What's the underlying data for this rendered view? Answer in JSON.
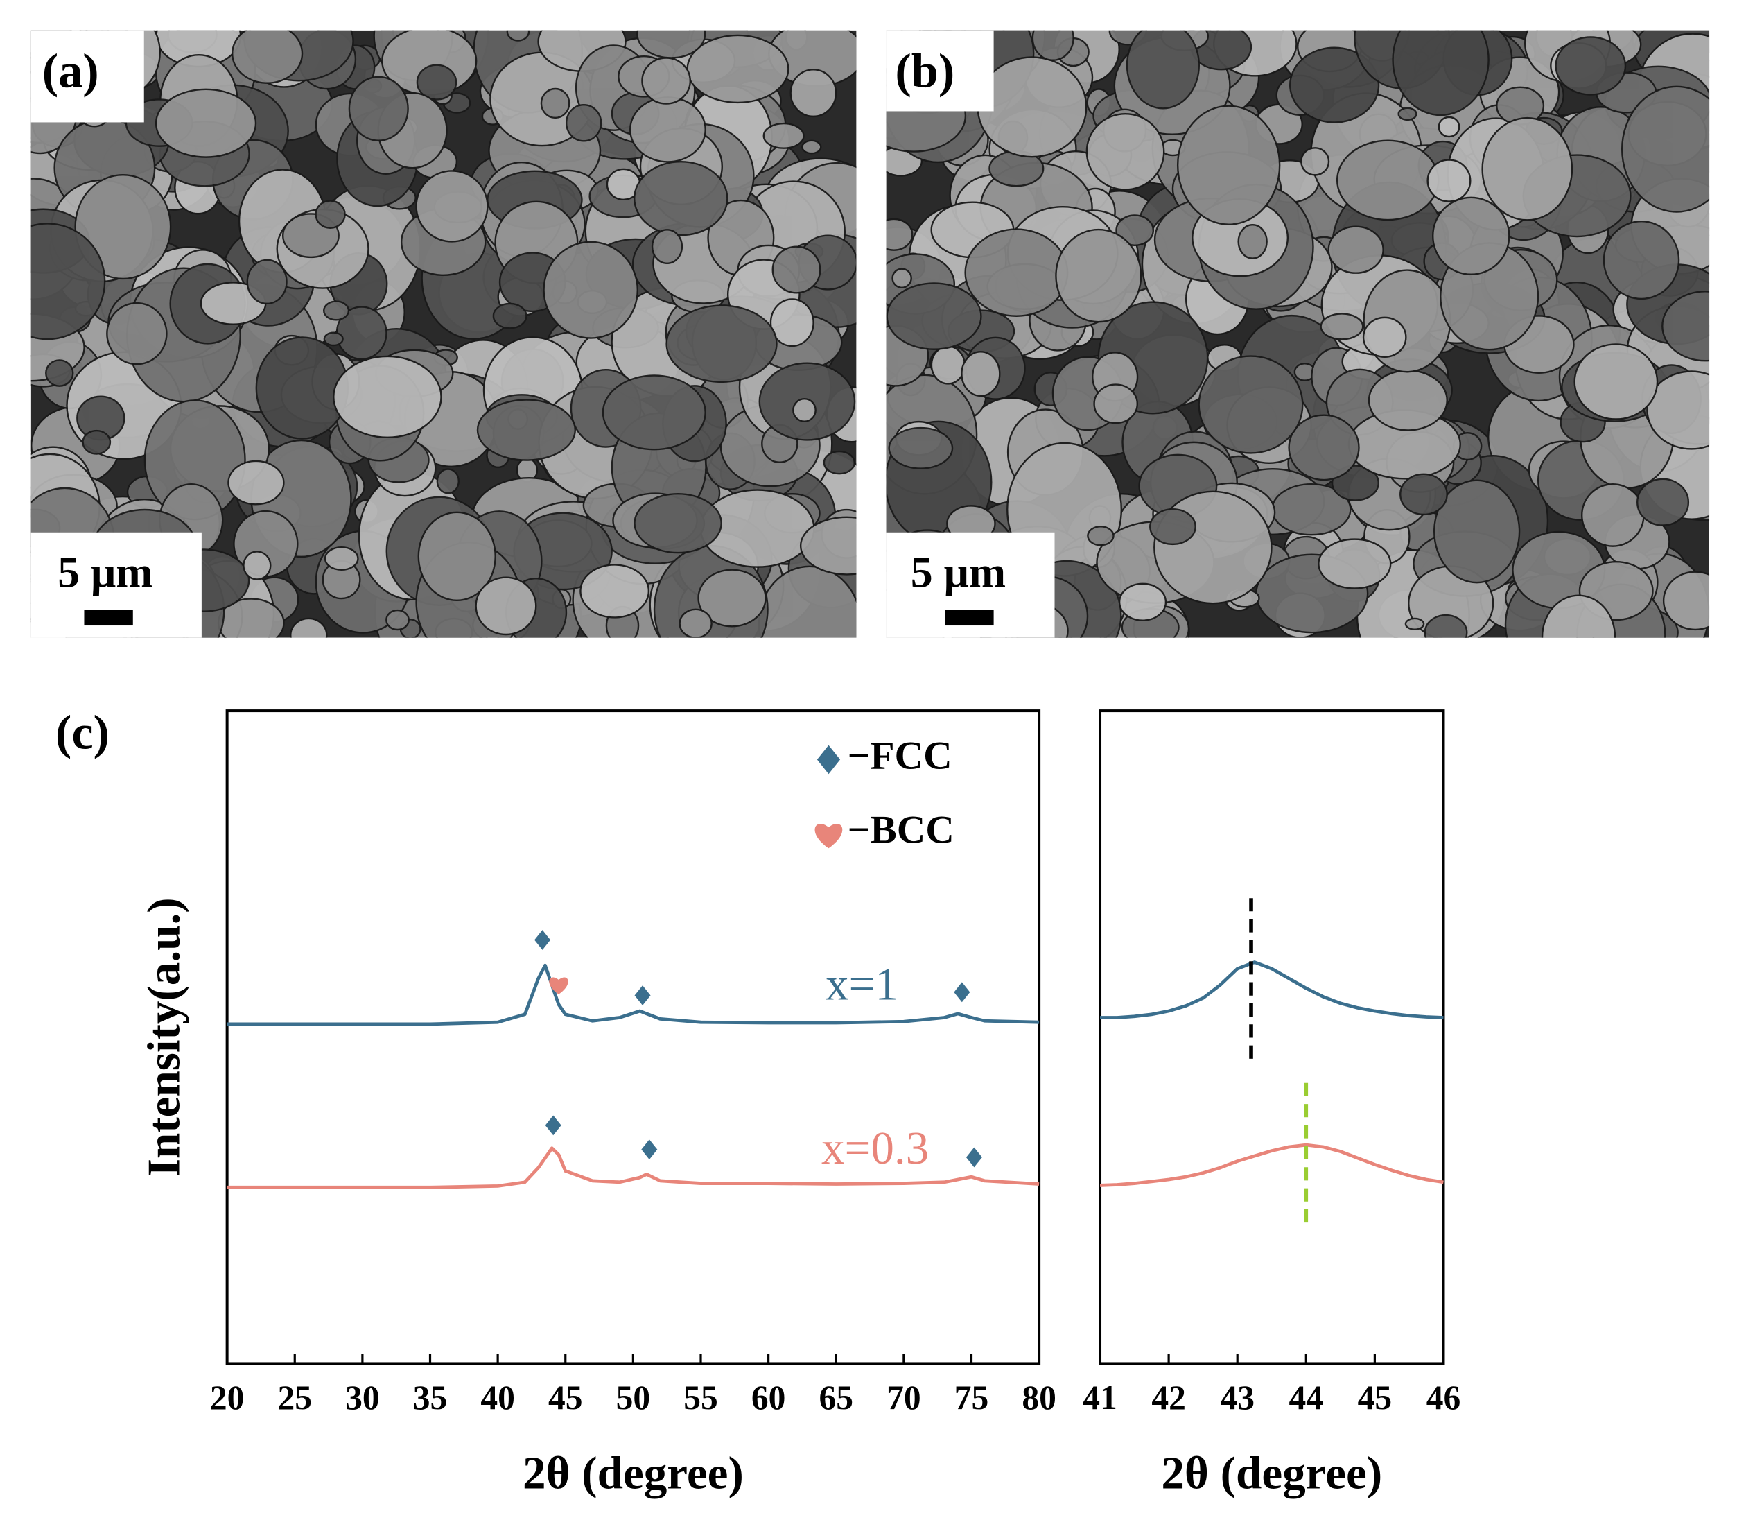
{
  "panels": [
    {
      "label": "(a)",
      "scale_bar": "5 μm"
    },
    {
      "label": "(b)",
      "scale_bar": "5 μm"
    }
  ],
  "panel_c_label": "(c)",
  "chart_data": [
    {
      "type": "line",
      "xlabel": "2θ (degree)",
      "ylabel": "Intensity(a.u.)",
      "x": [
        20,
        25,
        30,
        35,
        40,
        42,
        43,
        43.5,
        44,
        44.5,
        45,
        47,
        49,
        50.5,
        51,
        52,
        55,
        60,
        65,
        70,
        73,
        74,
        75,
        76,
        80
      ],
      "series": [
        {
          "name": "x=1",
          "color": "#3b6f8e",
          "values": [
            52,
            52,
            52,
            52,
            52.3,
            53.5,
            59,
            61,
            58,
            55,
            53.5,
            52.5,
            53,
            54,
            53.6,
            52.8,
            52.3,
            52.2,
            52.2,
            52.4,
            53,
            53.6,
            53,
            52.5,
            52.3
          ]
        },
        {
          "name": "x=0.3",
          "color": "#e8857a",
          "values": [
            27,
            27,
            27,
            27,
            27.2,
            27.8,
            30,
            31.5,
            33,
            32,
            29.5,
            28,
            27.8,
            28.5,
            29,
            28,
            27.6,
            27.6,
            27.5,
            27.6,
            27.8,
            28.2,
            28.6,
            28,
            27.5
          ]
        }
      ],
      "markers": [
        {
          "name": "−FCC",
          "symbol": "diamond",
          "color": "#3b6f8e",
          "points": [
            [
              43.3,
              64.9
            ],
            [
              50.7,
              56.4
            ],
            [
              74.3,
              56.9
            ],
            [
              44.1,
              36.5
            ],
            [
              51.2,
              32.8
            ],
            [
              75.2,
              31.6
            ]
          ]
        },
        {
          "name": "−BCC",
          "symbol": "heart",
          "color": "#e8857a",
          "points": [
            [
              44.5,
              58.1
            ]
          ]
        }
      ],
      "xlim": [
        20,
        80
      ],
      "xticks": [
        20,
        25,
        30,
        35,
        40,
        45,
        50,
        55,
        60,
        65,
        70,
        75,
        80
      ],
      "ylim": [
        0,
        100
      ]
    },
    {
      "type": "line",
      "xlabel": "2θ (degree)",
      "x": [
        41,
        41.25,
        41.5,
        41.75,
        42,
        42.25,
        42.5,
        42.75,
        43,
        43.25,
        43.5,
        43.75,
        44,
        44.25,
        44.5,
        44.75,
        45,
        45.25,
        45.5,
        45.75,
        46
      ],
      "series": [
        {
          "color": "#3b6f8e",
          "values": [
            53,
            53,
            53.2,
            53.5,
            54,
            54.8,
            56,
            58,
            60.5,
            61.5,
            60.5,
            59,
            57.5,
            56.2,
            55.2,
            54.5,
            54,
            53.6,
            53.3,
            53.1,
            53
          ]
        },
        {
          "color": "#e8857a",
          "values": [
            27.3,
            27.4,
            27.6,
            27.9,
            28.2,
            28.6,
            29.2,
            30,
            31,
            31.8,
            32.6,
            33.2,
            33.5,
            33.2,
            32.5,
            31.5,
            30.5,
            29.6,
            28.8,
            28.2,
            27.8
          ]
        }
      ],
      "reference_lines": [
        {
          "x": 43.2,
          "y": [
            46.7,
            71.3
          ],
          "color": "#000000"
        },
        {
          "x": 44,
          "y": [
            21.6,
            43.3
          ],
          "color": "#9acd32"
        }
      ],
      "xlim": [
        41,
        46
      ],
      "xticks": [
        41,
        42,
        43,
        44,
        45,
        46
      ],
      "ylim": [
        0,
        100
      ]
    }
  ]
}
